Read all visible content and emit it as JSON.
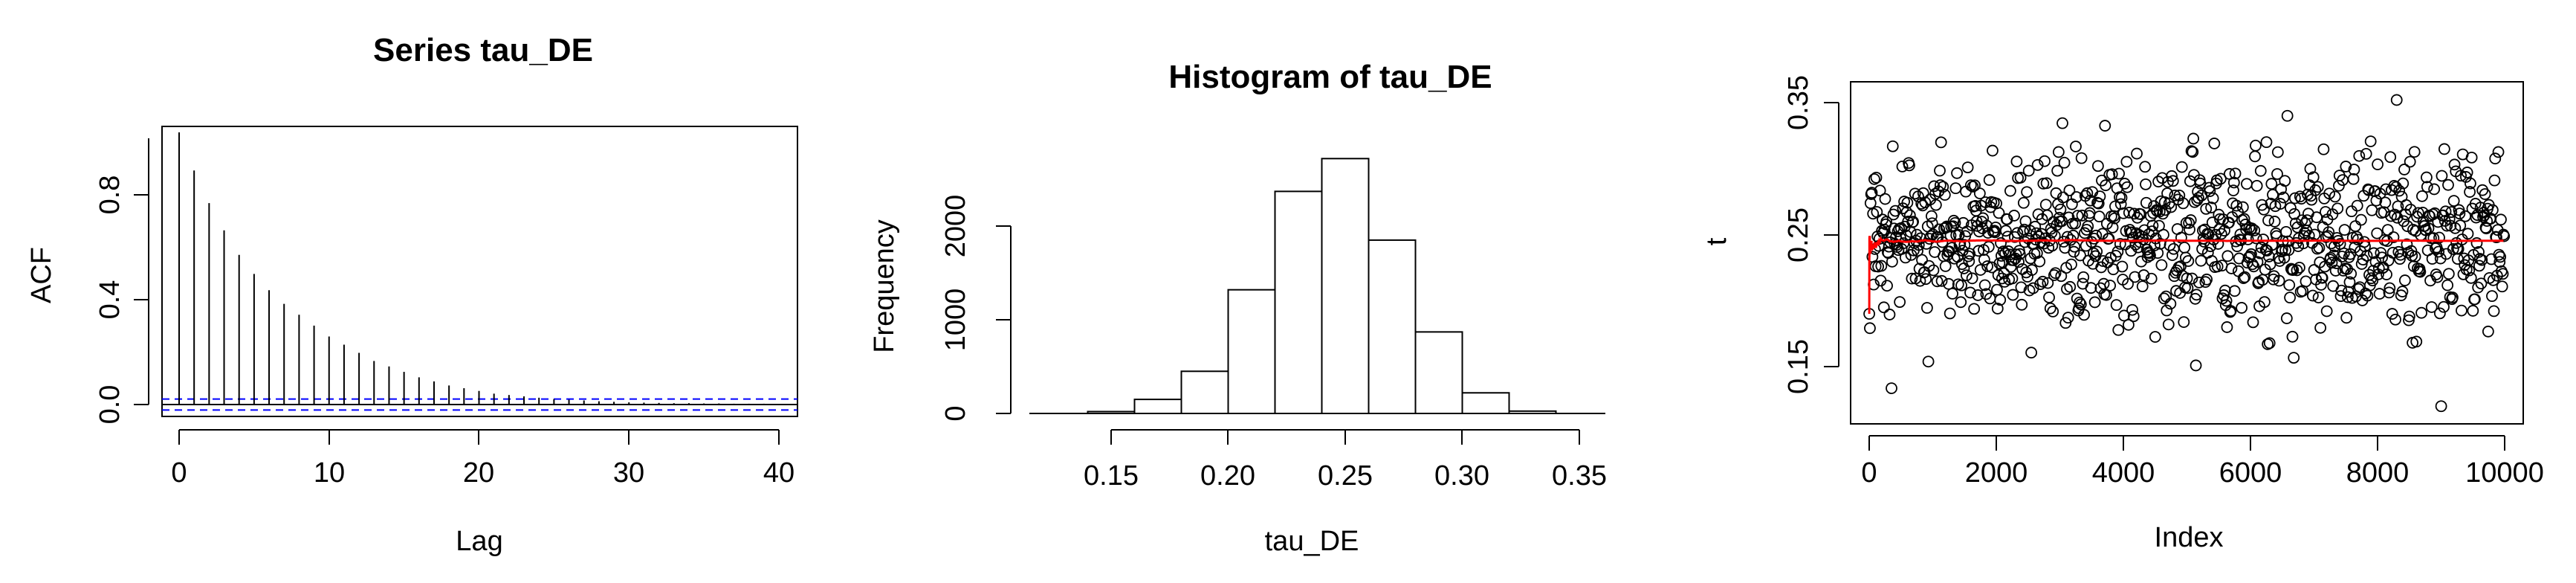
{
  "chart_data": [
    {
      "type": "bar",
      "plot": "acf",
      "title": "Series  tau_DE",
      "xlabel": "Lag",
      "ylabel": "ACF",
      "xlim": [
        -1,
        41
      ],
      "ylim": [
        -0.02,
        1.0
      ],
      "x_ticks": [
        "0",
        "10",
        "20",
        "30",
        "40"
      ],
      "y_ticks": [
        "0.0",
        "0.4",
        "0.8"
      ],
      "lags": [
        0,
        1,
        2,
        3,
        4,
        5,
        6,
        7,
        8,
        9,
        10,
        11,
        12,
        13,
        14,
        15,
        16,
        17,
        18,
        19,
        20,
        21,
        22,
        23,
        24,
        25,
        26,
        27,
        28,
        29,
        30,
        31,
        32,
        33,
        34,
        35,
        36,
        37,
        38,
        39,
        40
      ],
      "values": [
        1.0,
        0.86,
        0.74,
        0.64,
        0.55,
        0.48,
        0.42,
        0.37,
        0.33,
        0.29,
        0.25,
        0.22,
        0.19,
        0.16,
        0.14,
        0.12,
        0.1,
        0.085,
        0.07,
        0.06,
        0.05,
        0.04,
        0.035,
        0.03,
        0.025,
        0.02,
        0.018,
        0.015,
        0.012,
        0.01,
        0.008,
        0.007,
        0.006,
        0.005,
        0.005,
        0.004,
        0.004,
        0.003,
        0.003,
        0.003,
        0.002
      ],
      "conf_band": 0.02,
      "colors": {
        "bars": "#000000",
        "conf_band": "#0000ff"
      }
    },
    {
      "type": "bar",
      "plot": "histogram",
      "title": "Histogram of tau_DE",
      "xlabel": "tau_DE",
      "ylabel": "Frequency",
      "xlim": [
        0.125,
        0.355
      ],
      "ylim": [
        0,
        2700
      ],
      "x_ticks": [
        "0.15",
        "0.20",
        "0.25",
        "0.30",
        "0.35"
      ],
      "y_ticks": [
        "0",
        "1000",
        "2000"
      ],
      "bins": [
        [
          0.14,
          0.16
        ],
        [
          0.16,
          0.18
        ],
        [
          0.18,
          0.2
        ],
        [
          0.2,
          0.22
        ],
        [
          0.22,
          0.24
        ],
        [
          0.24,
          0.26
        ],
        [
          0.26,
          0.28
        ],
        [
          0.28,
          0.3
        ],
        [
          0.3,
          0.32
        ],
        [
          0.32,
          0.34
        ]
      ],
      "values": [
        20,
        150,
        450,
        1320,
        2370,
        2720,
        1850,
        870,
        220,
        25
      ]
    },
    {
      "type": "scatter",
      "plot": "trace",
      "xlabel": "Index",
      "ylabel": "t",
      "xlim": [
        -300,
        10300
      ],
      "ylim": [
        0.105,
        0.365
      ],
      "x_ticks": [
        "0",
        "2000",
        "4000",
        "6000",
        "8000",
        "10000"
      ],
      "y_ticks": [
        "0.15",
        "0.25",
        "0.35"
      ],
      "n": 10000,
      "mean": 0.245,
      "sd": 0.032,
      "marker": "open circle",
      "line": "running mean",
      "colors": {
        "points": "#000000",
        "line": "#ff0000"
      }
    }
  ]
}
